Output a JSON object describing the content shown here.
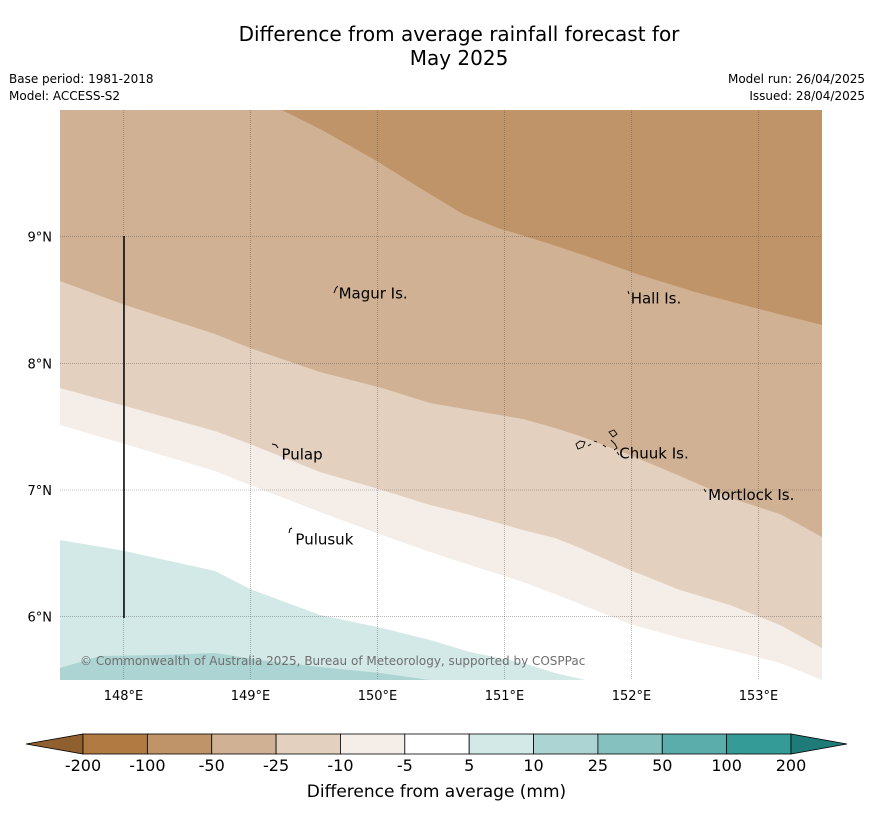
{
  "title": {
    "line1": "Difference from average rainfall forecast for",
    "line2": "May 2025"
  },
  "meta": {
    "base_period": "Base period: 1981-2018",
    "model": "Model: ACCESS-S2",
    "model_run": "Model run: 26/04/2025",
    "issued": "Issued: 28/04/2025"
  },
  "map": {
    "lon_range": [
      147.5,
      153.5
    ],
    "lat_range": [
      5.5,
      10.0
    ],
    "lon_ticks": [
      148,
      149,
      150,
      151,
      152,
      153
    ],
    "lon_tick_labels": [
      "148°E",
      "149°E",
      "150°E",
      "151°E",
      "152°E",
      "153°E"
    ],
    "lat_ticks": [
      6,
      7,
      8,
      9
    ],
    "lat_tick_labels": [
      "6°N",
      "7°N",
      "8°N",
      "9°N"
    ],
    "places": [
      {
        "name": "Magur Is.",
        "lon": 149.67,
        "lat": 8.55
      },
      {
        "name": "Hall Is.",
        "lon": 151.97,
        "lat": 8.51
      },
      {
        "name": "Pulap",
        "lon": 149.22,
        "lat": 7.28
      },
      {
        "name": "Chuuk Is.",
        "lon": 151.88,
        "lat": 7.29
      },
      {
        "name": "Mortlock Is.",
        "lon": 152.58,
        "lat": 6.96
      },
      {
        "name": "Pulusuk",
        "lon": 149.33,
        "lat": 6.61
      }
    ],
    "copyright": "© Commonwealth of Australia 2025, Bureau of Meteorology, supported by COSPPac",
    "colors": {
      "lt_-100": "#bf9468",
      "lt_-50": "#d0b193",
      "lt_-25": "#e3d0bf",
      "lt_-10": "#f4ede8",
      "-5_5": "#ffffff",
      "5_10": "#d3e9e7",
      "10_25": "#acd4d2",
      "frame": "#333333"
    }
  },
  "colorbar": {
    "tick_labels": [
      "-200",
      "-100",
      "-50",
      "-25",
      "-10",
      "-5",
      "5",
      "10",
      "25",
      "50",
      "100",
      "200"
    ],
    "colors": [
      "#b07a42",
      "#bf9468",
      "#d0b193",
      "#e3d0bf",
      "#f4ede8",
      "#ffffff",
      "#d3e9e7",
      "#acd4d2",
      "#84c1bf",
      "#5aadab",
      "#349b97"
    ],
    "extend_low_color": "#8f5f30",
    "extend_high_color": "#1f7b77",
    "label": "Difference from average (mm)"
  }
}
